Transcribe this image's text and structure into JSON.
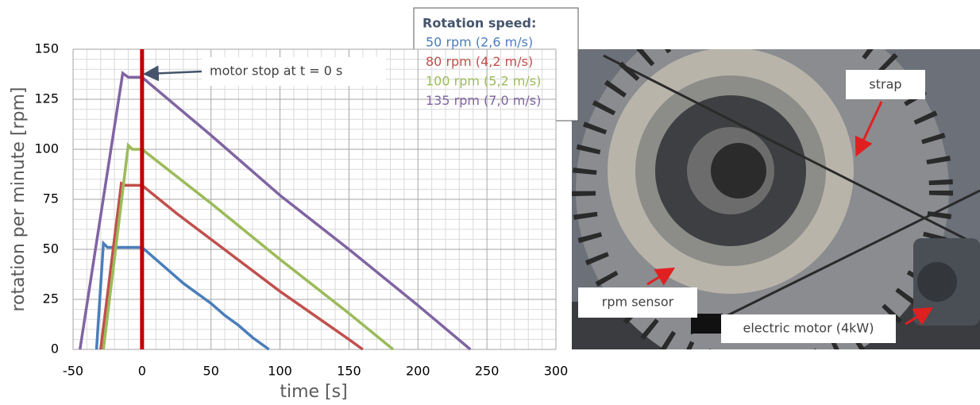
{
  "chart_data": {
    "type": "line",
    "xlabel": "time [s]",
    "ylabel": "rotation per minute [rpm]",
    "xlim": [
      -50,
      300
    ],
    "xticks": [
      -50,
      0,
      50,
      100,
      150,
      200,
      250,
      300
    ],
    "ylim": [
      0,
      150
    ],
    "yticks": [
      0,
      25,
      50,
      75,
      100,
      125,
      150
    ],
    "grid": true,
    "legend_title": "Rotation speed:",
    "annotation": "motor stop at t = 0 s",
    "vline": 0,
    "vline_color": "#c00000",
    "series": [
      {
        "name": "50 rpm (2,6 m/s)",
        "color": "#4a7ebb",
        "x": [
          -33,
          -28,
          -25,
          -20,
          -15,
          -10,
          -5,
          0,
          10,
          20,
          30,
          40,
          50,
          60,
          70,
          80,
          92
        ],
        "values": [
          0,
          53,
          51,
          51,
          51,
          51,
          51,
          51,
          45,
          39,
          33,
          28,
          23,
          17,
          12,
          6,
          0
        ]
      },
      {
        "name": "80 rpm (4,2 m/s)",
        "color": "#c0504d",
        "x": [
          -30,
          -15,
          -12,
          -8,
          -4,
          0,
          25,
          50,
          75,
          100,
          125,
          150,
          160
        ],
        "values": [
          0,
          83,
          82,
          82,
          82,
          82,
          68,
          55,
          42,
          29,
          17,
          5,
          0
        ]
      },
      {
        "name": "100 rpm (5,2 m/s)",
        "color": "#9bbb59",
        "x": [
          -28,
          -10,
          -7,
          -4,
          0,
          50,
          100,
          150,
          182
        ],
        "values": [
          0,
          102,
          100,
          100,
          100,
          73,
          45,
          18,
          0
        ]
      },
      {
        "name": "135 rpm (7,0 m/s)",
        "color": "#8064a2",
        "x": [
          -45,
          -14,
          -10,
          -6,
          -3,
          0,
          50,
          100,
          150,
          200,
          238
        ],
        "values": [
          0,
          138,
          136,
          136,
          136,
          136,
          107,
          77,
          50,
          22,
          0
        ]
      }
    ]
  },
  "photo": {
    "labels": [
      "strap",
      "rpm sensor",
      "electric motor (4kW)"
    ]
  }
}
